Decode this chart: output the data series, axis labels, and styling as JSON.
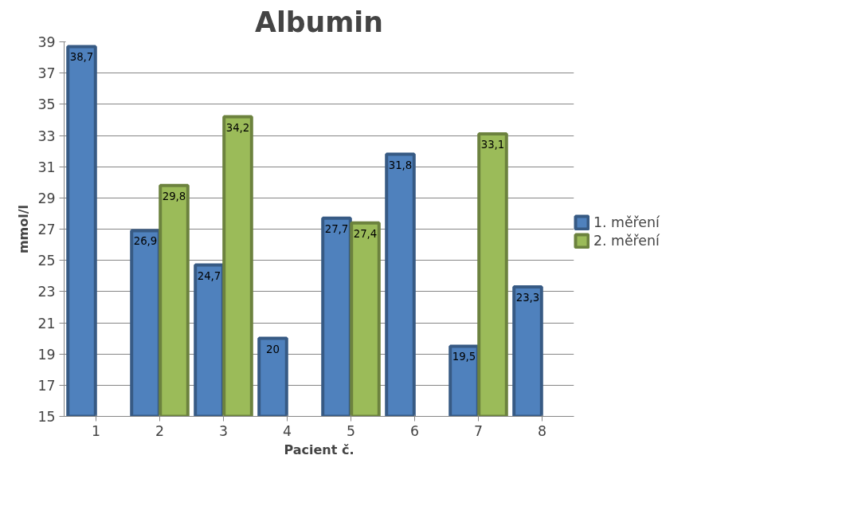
{
  "chart_data": {
    "type": "bar",
    "title": "Albumin",
    "xlabel": "Pacient č.",
    "ylabel": "mmol/l",
    "categories": [
      "1",
      "2",
      "3",
      "4",
      "5",
      "6",
      "7",
      "8"
    ],
    "series": [
      {
        "name": "1. měření",
        "color": "#4f81bd",
        "values": [
          38.7,
          26.9,
          24.7,
          20,
          27.7,
          31.8,
          19.5,
          23.3
        ],
        "value_labels": [
          "38,7",
          "26,9",
          "24,7",
          "20",
          "27,7",
          "31,8",
          "19,5",
          "23,3"
        ]
      },
      {
        "name": "2. měření",
        "color": "#9bbb59",
        "values": [
          null,
          29.8,
          34.2,
          null,
          27.4,
          null,
          33.1,
          null
        ],
        "value_labels": [
          null,
          "29,8",
          "34,2",
          null,
          "27,4",
          null,
          "33,1",
          null
        ]
      }
    ],
    "ylim": [
      15,
      39
    ],
    "yticks": [
      15,
      17,
      19,
      21,
      23,
      25,
      27,
      29,
      31,
      33,
      35,
      37,
      39
    ],
    "grid": "y",
    "legend": "right"
  }
}
